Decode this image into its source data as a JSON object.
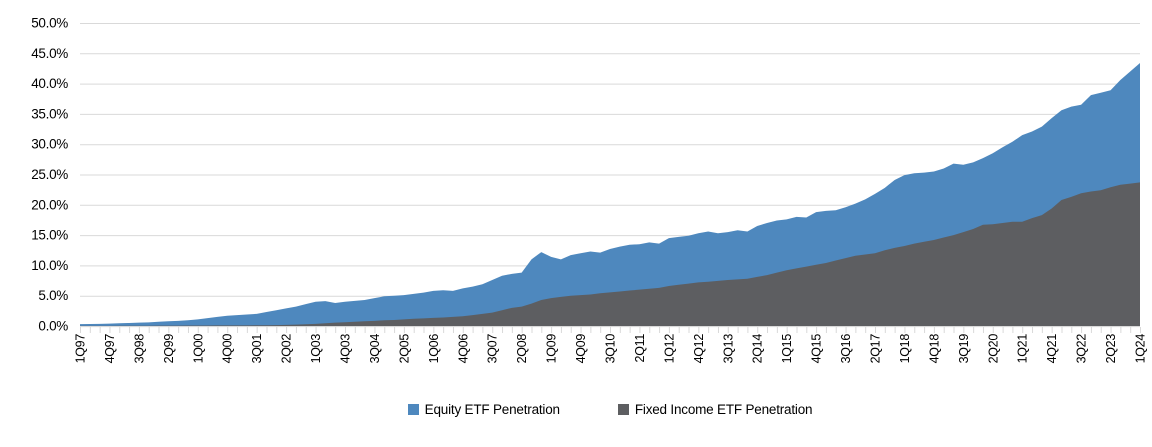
{
  "chart_data": {
    "type": "area",
    "title": "",
    "xlabel": "",
    "ylabel": "",
    "ylim": [
      0,
      50
    ],
    "y_tick_step": 5,
    "y_tick_labels": [
      "50.0%",
      "45.0%",
      "40.0%",
      "35.0%",
      "30.0%",
      "25.0%",
      "20.0%",
      "15.0%",
      "10.0%",
      "5.0%",
      "0.0%"
    ],
    "grid": "horizontal",
    "legend_position": "bottom",
    "stacked": false,
    "layering": "series drawn from zero baseline, second series in front",
    "x_tick_step": 3,
    "categories": [
      "1Q97",
      "2Q97",
      "3Q97",
      "4Q97",
      "1Q98",
      "2Q98",
      "3Q98",
      "4Q98",
      "1Q99",
      "2Q99",
      "3Q99",
      "4Q99",
      "1Q00",
      "2Q00",
      "3Q00",
      "4Q00",
      "1Q01",
      "2Q01",
      "3Q01",
      "4Q01",
      "1Q02",
      "2Q02",
      "3Q02",
      "4Q02",
      "1Q03",
      "2Q03",
      "3Q03",
      "4Q03",
      "1Q04",
      "2Q04",
      "3Q04",
      "4Q04",
      "1Q05",
      "2Q05",
      "3Q05",
      "4Q05",
      "1Q06",
      "2Q06",
      "3Q06",
      "4Q06",
      "1Q07",
      "2Q07",
      "3Q07",
      "4Q07",
      "1Q08",
      "2Q08",
      "3Q08",
      "4Q08",
      "1Q09",
      "2Q09",
      "3Q09",
      "4Q09",
      "1Q10",
      "2Q10",
      "3Q10",
      "4Q10",
      "1Q11",
      "2Q11",
      "3Q11",
      "4Q11",
      "1Q12",
      "2Q12",
      "3Q12",
      "4Q12",
      "1Q13",
      "2Q13",
      "3Q13",
      "4Q13",
      "1Q14",
      "2Q14",
      "3Q14",
      "4Q14",
      "1Q15",
      "2Q15",
      "3Q15",
      "4Q15",
      "1Q16",
      "2Q16",
      "3Q16",
      "4Q16",
      "1Q17",
      "2Q17",
      "3Q17",
      "4Q17",
      "1Q18",
      "2Q18",
      "3Q18",
      "4Q18",
      "1Q19",
      "2Q19",
      "3Q19",
      "4Q19",
      "1Q20",
      "2Q20",
      "3Q20",
      "4Q20",
      "1Q21",
      "2Q21",
      "3Q21",
      "4Q21",
      "1Q22",
      "2Q22",
      "3Q22",
      "4Q22",
      "1Q23",
      "2Q23",
      "3Q23",
      "4Q23",
      "1Q24"
    ],
    "series": [
      {
        "name": "Equity ETF Penetration",
        "color": "#4E88BE",
        "values": [
          0.3,
          0.33,
          0.36,
          0.4,
          0.45,
          0.5,
          0.55,
          0.6,
          0.7,
          0.78,
          0.85,
          0.95,
          1.1,
          1.3,
          1.5,
          1.7,
          1.8,
          1.9,
          2.0,
          2.3,
          2.6,
          2.9,
          3.2,
          3.6,
          4.0,
          4.1,
          3.8,
          4.0,
          4.15,
          4.3,
          4.6,
          4.9,
          5.0,
          5.1,
          5.3,
          5.5,
          5.8,
          5.9,
          5.8,
          6.2,
          6.5,
          6.9,
          7.6,
          8.3,
          8.6,
          8.8,
          11.0,
          12.2,
          11.4,
          11.0,
          11.7,
          12.0,
          12.3,
          12.1,
          12.7,
          13.1,
          13.4,
          13.5,
          13.8,
          13.6,
          14.5,
          14.7,
          14.9,
          15.3,
          15.6,
          15.3,
          15.5,
          15.8,
          15.6,
          16.5,
          17.0,
          17.4,
          17.6,
          18.0,
          17.9,
          18.8,
          19.0,
          19.1,
          19.6,
          20.2,
          20.9,
          21.8,
          22.8,
          24.1,
          24.9,
          25.2,
          25.3,
          25.5,
          26.0,
          26.8,
          26.6,
          27.0,
          27.7,
          28.5,
          29.5,
          30.4,
          31.5,
          32.1,
          32.9,
          34.3,
          35.6,
          36.2,
          36.5,
          38.1,
          38.5,
          38.9,
          40.6,
          42.0,
          43.4
        ]
      },
      {
        "name": "Fixed Income ETF Penetration",
        "color": "#5D5E61",
        "values": [
          0.02,
          0.02,
          0.03,
          0.03,
          0.04,
          0.04,
          0.05,
          0.05,
          0.06,
          0.06,
          0.07,
          0.08,
          0.08,
          0.09,
          0.1,
          0.1,
          0.1,
          0.11,
          0.12,
          0.13,
          0.15,
          0.18,
          0.22,
          0.28,
          0.35,
          0.45,
          0.55,
          0.62,
          0.7,
          0.78,
          0.85,
          0.95,
          1.0,
          1.1,
          1.2,
          1.25,
          1.35,
          1.4,
          1.5,
          1.6,
          1.8,
          2.0,
          2.2,
          2.6,
          3.0,
          3.2,
          3.7,
          4.3,
          4.6,
          4.8,
          5.0,
          5.1,
          5.2,
          5.4,
          5.55,
          5.7,
          5.85,
          6.0,
          6.15,
          6.3,
          6.6,
          6.8,
          7.0,
          7.2,
          7.3,
          7.45,
          7.6,
          7.7,
          7.8,
          8.1,
          8.4,
          8.8,
          9.2,
          9.5,
          9.8,
          10.1,
          10.4,
          10.8,
          11.2,
          11.6,
          11.8,
          12.0,
          12.5,
          12.9,
          13.2,
          13.6,
          13.9,
          14.2,
          14.6,
          15.0,
          15.5,
          16.0,
          16.7,
          16.8,
          17.0,
          17.2,
          17.2,
          17.8,
          18.3,
          19.4,
          20.8,
          21.3,
          21.9,
          22.2,
          22.4,
          22.9,
          23.3,
          23.5,
          23.7
        ]
      }
    ],
    "colors": {
      "gridline": "#D9D9D9",
      "axis": "#D9D9D9",
      "tick": "#D9D9D9",
      "label": "#000000"
    }
  }
}
